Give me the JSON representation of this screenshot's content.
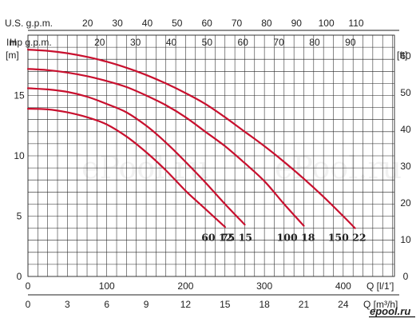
{
  "chart_data": {
    "type": "line",
    "title": "",
    "x_primary": {
      "label": "Q [l/1']",
      "range": [
        0,
        465
      ],
      "ticks": [
        0,
        100,
        200,
        300,
        400
      ]
    },
    "x_secondary": {
      "label": "Q [m³/h]",
      "ticks": [
        0,
        3,
        6,
        9,
        12,
        15,
        18,
        21,
        24
      ]
    },
    "x_top_us": {
      "label": "U.S. g.p.m.",
      "ticks": [
        20,
        30,
        40,
        50,
        60,
        70,
        80,
        90,
        100,
        110
      ]
    },
    "x_top_imp": {
      "label": "Imp g.p.m.",
      "ticks": [
        20,
        30,
        40,
        50,
        60,
        70,
        80,
        90
      ]
    },
    "y_left": {
      "label": "H",
      "unit": "[m]",
      "range": [
        0,
        20
      ],
      "ticks": [
        0,
        5,
        10,
        15
      ]
    },
    "y_right": {
      "unit": "[ft]",
      "ticks": [
        0,
        10,
        20,
        30,
        40,
        50,
        60
      ]
    },
    "grid": true,
    "series": [
      {
        "name": "60 12",
        "x": [
          0,
          25,
          50,
          75,
          100,
          125,
          150,
          175,
          200,
          225,
          250
        ],
        "y": [
          13.9,
          13.85,
          13.6,
          13.2,
          12.6,
          11.6,
          10.3,
          8.8,
          7.1,
          5.6,
          4.1
        ]
      },
      {
        "name": "75 15",
        "x": [
          0,
          25,
          50,
          75,
          100,
          125,
          150,
          175,
          200,
          225,
          250,
          275
        ],
        "y": [
          15.6,
          15.5,
          15.3,
          14.9,
          14.3,
          13.6,
          12.5,
          11.1,
          9.5,
          7.8,
          6.0,
          4.3
        ]
      },
      {
        "name": "100 18",
        "x": [
          0,
          25,
          50,
          75,
          100,
          125,
          150,
          175,
          200,
          225,
          250,
          275,
          300,
          325,
          350
        ],
        "y": [
          17.2,
          17.1,
          16.9,
          16.6,
          16.2,
          15.7,
          15.0,
          14.2,
          13.2,
          12.0,
          10.8,
          9.4,
          7.9,
          6.0,
          4.2
        ]
      },
      {
        "name": "150 22",
        "x": [
          0,
          25,
          50,
          75,
          100,
          125,
          150,
          175,
          200,
          225,
          250,
          275,
          300,
          325,
          350,
          375,
          400,
          415
        ],
        "y": [
          18.8,
          18.7,
          18.5,
          18.2,
          17.8,
          17.3,
          16.7,
          16.0,
          15.2,
          14.3,
          13.2,
          12.0,
          10.8,
          9.5,
          8.1,
          6.6,
          5.0,
          4.0
        ]
      }
    ]
  },
  "watermark_text": "ePool.ru",
  "logo_text": "epool.ru",
  "colors": {
    "curve": "#c8102e",
    "grid": "#222222"
  }
}
